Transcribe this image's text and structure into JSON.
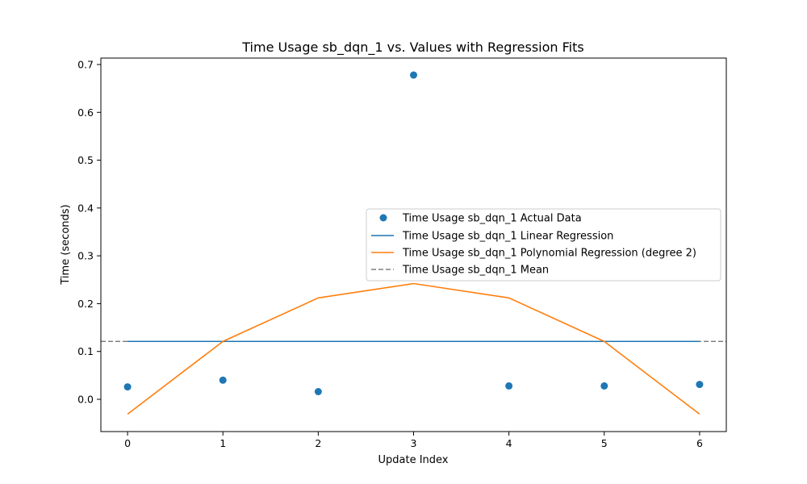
{
  "chart_data": {
    "type": "scatter",
    "title": "Time Usage sb_dqn_1 vs. Values with Regression Fits",
    "xlabel": "Update Index",
    "ylabel": "Time (seconds)",
    "xlim": [
      -0.28,
      6.28
    ],
    "ylim": [
      -0.0675,
      0.7135
    ],
    "xticks": [
      0,
      1,
      2,
      3,
      4,
      5,
      6
    ],
    "yticks": [
      0.0,
      0.1,
      0.2,
      0.3,
      0.4,
      0.5,
      0.6,
      0.7
    ],
    "ytick_labels": [
      "0.0",
      "0.1",
      "0.2",
      "0.3",
      "0.4",
      "0.5",
      "0.6",
      "0.7"
    ],
    "grid": false,
    "legend_position": "center-right",
    "x": [
      0,
      1,
      2,
      3,
      4,
      5,
      6
    ],
    "series": [
      {
        "name": "Time Usage sb_dqn_1 Actual Data",
        "kind": "scatter",
        "color": "#1f77b4",
        "values": [
          0.026,
          0.04,
          0.016,
          0.678,
          0.028,
          0.028,
          0.031
        ]
      },
      {
        "name": "Time Usage sb_dqn_1 Linear Regression",
        "kind": "line",
        "color": "#1f77b4",
        "values": [
          0.121,
          0.121,
          0.121,
          0.121,
          0.121,
          0.121,
          0.121
        ]
      },
      {
        "name": "Time Usage sb_dqn_1 Polynomial Regression (degree 2)",
        "kind": "line",
        "color": "#ff7f0e",
        "values": [
          -0.031,
          0.121,
          0.212,
          0.242,
          0.212,
          0.121,
          -0.031
        ]
      },
      {
        "name": "Time Usage sb_dqn_1 Mean",
        "kind": "hline-dashed",
        "color": "#808080",
        "value": 0.121
      }
    ]
  }
}
